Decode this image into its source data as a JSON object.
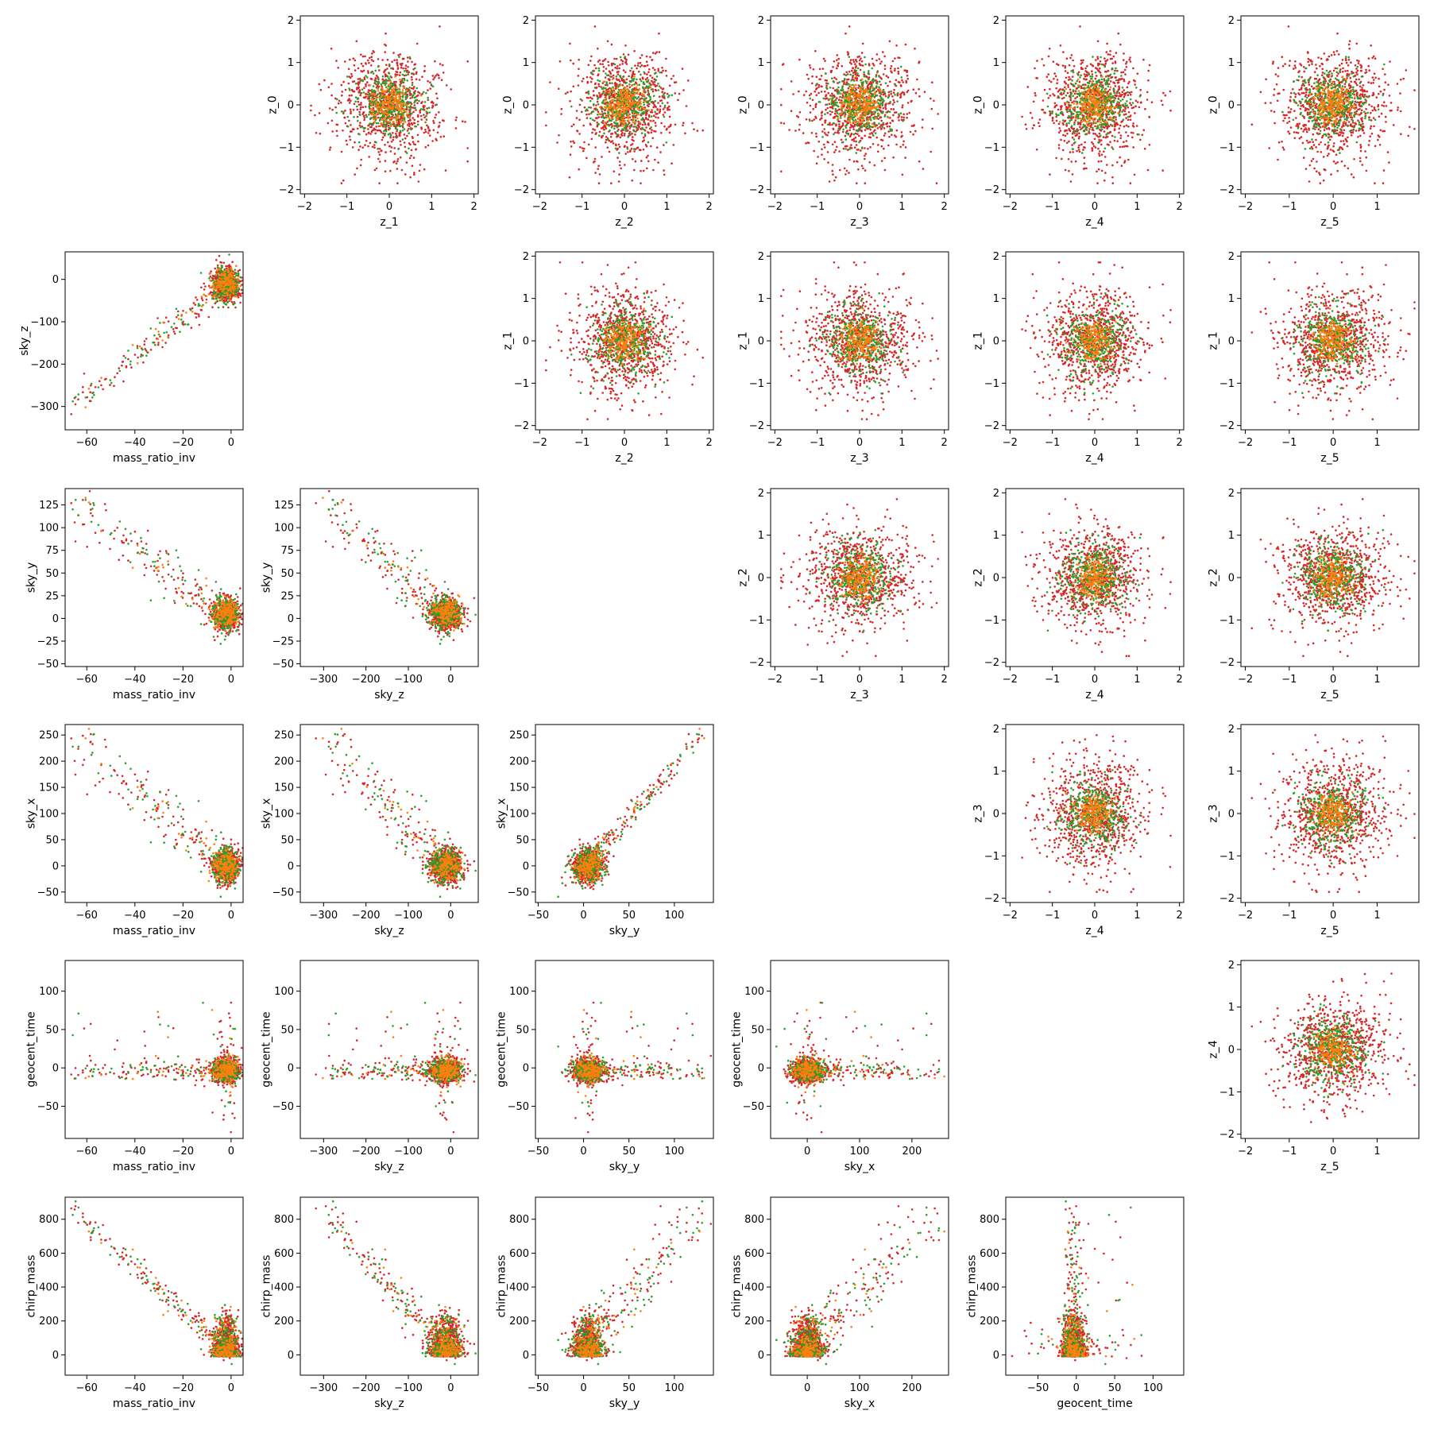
{
  "chart_data": {
    "type": "scatter",
    "layout": "corner-grid",
    "grid": false,
    "legend": "none",
    "colors": {
      "outer": "#d62728",
      "middle": "#2ca02c",
      "inner": "#ff7f0e"
    },
    "rows": [
      "z_0",
      "sky_z",
      "sky_y",
      "sky_x",
      "geocent_time",
      "chirp_mass"
    ],
    "cols": [
      "mass_ratio_inv",
      "z_1",
      "z_2",
      "z_3",
      "z_4",
      "z_5"
    ],
    "variables": {
      "z_0": {
        "range": [
          -2.1,
          2.1
        ],
        "ticks": [
          -2,
          -1,
          0,
          1,
          2
        ]
      },
      "z_1": {
        "range": [
          -2.1,
          2.1
        ],
        "ticks": [
          -2,
          -1,
          0,
          1,
          2
        ]
      },
      "z_2": {
        "range": [
          -2.1,
          2.1
        ],
        "ticks": [
          -2,
          -1,
          0,
          1,
          2
        ]
      },
      "z_3": {
        "range": [
          -2.1,
          2.1
        ],
        "ticks": [
          -2,
          -1,
          0,
          1,
          2
        ]
      },
      "z_4": {
        "range": [
          -2.1,
          2.1
        ],
        "ticks": [
          -2,
          -1,
          0,
          1,
          2
        ]
      },
      "z_5": {
        "range": [
          -2.1,
          1.95
        ],
        "ticks": [
          -2,
          -1,
          0,
          1
        ]
      },
      "mass_ratio_inv": {
        "range": [
          -69,
          5
        ],
        "ticks": [
          -60,
          -40,
          -20,
          0
        ]
      },
      "sky_z": {
        "range": [
          -355,
          65
        ],
        "ticks": [
          -300,
          -200,
          -100,
          0
        ]
      },
      "sky_y": {
        "range": [
          -53,
          143
        ],
        "ticks": [
          -50,
          0,
          50,
          100
        ]
      },
      "sky_x": {
        "range": [
          -70,
          270
        ],
        "ticks": [
          0,
          100,
          200
        ]
      },
      "geocent_time": {
        "range": [
          -92,
          140
        ],
        "ticks": [
          -50,
          0,
          50,
          100
        ]
      },
      "chirp_mass": {
        "range": [
          -120,
          930
        ],
        "ticks": [
          0,
          200,
          400,
          600,
          800
        ]
      }
    },
    "tick_labels": {
      "z_0": [
        "−2",
        "−1",
        "0",
        "1",
        "2"
      ],
      "z_1": [
        "−2",
        "−1",
        "0",
        "1",
        "2"
      ],
      "z_2": [
        "−2",
        "−1",
        "0",
        "1",
        "2"
      ],
      "z_3": [
        "−2",
        "−1",
        "0",
        "1",
        "2"
      ],
      "z_4": [
        "−2",
        "−1",
        "0",
        "1",
        "2"
      ],
      "z_5": [
        "−2",
        "−1",
        "0",
        "1"
      ],
      "mass_ratio_inv": [
        "−60",
        "−40",
        "−20",
        "0"
      ],
      "sky_z": [
        "−300",
        "−200",
        "−100",
        "0"
      ],
      "sky_y": [
        "−50",
        "0",
        "50",
        "100"
      ],
      "sky_x": [
        "0",
        "100",
        "200"
      ],
      "geocent_time": [
        "−50",
        "0",
        "50",
        "100"
      ],
      "chirp_mass": [
        "0",
        "200",
        "400",
        "600",
        "800"
      ]
    },
    "panels": [
      {
        "row": 0,
        "col": 1,
        "x": "z_1",
        "y": "z_0",
        "ytick_labels": [
          "−2",
          "−1",
          "0",
          "1",
          "2"
        ]
      },
      {
        "row": 0,
        "col": 2,
        "x": "z_2",
        "y": "z_0"
      },
      {
        "row": 0,
        "col": 3,
        "x": "z_3",
        "y": "z_0"
      },
      {
        "row": 0,
        "col": 4,
        "x": "z_4",
        "y": "z_0"
      },
      {
        "row": 0,
        "col": 5,
        "x": "z_5",
        "y": "z_0"
      },
      {
        "row": 1,
        "col": 0,
        "x": "mass_ratio_inv",
        "y": "sky_z",
        "ytick_labels": [
          "−300",
          "−200",
          "−100",
          "0"
        ]
      },
      {
        "row": 1,
        "col": 2,
        "x": "z_2",
        "y": "z_1"
      },
      {
        "row": 1,
        "col": 3,
        "x": "z_3",
        "y": "z_1"
      },
      {
        "row": 1,
        "col": 4,
        "x": "z_4",
        "y": "z_1"
      },
      {
        "row": 1,
        "col": 5,
        "x": "z_5",
        "y": "z_1"
      },
      {
        "row": 2,
        "col": 0,
        "x": "mass_ratio_inv",
        "y": "sky_y",
        "yticks": [
          -50,
          -25,
          0,
          25,
          50,
          75,
          100,
          125
        ],
        "ytick_labels": [
          "−50",
          "−25",
          "0",
          "25",
          "50",
          "75",
          "100",
          "125"
        ]
      },
      {
        "row": 2,
        "col": 1,
        "x": "sky_z",
        "y": "sky_y",
        "yticks": [
          -50,
          -25,
          0,
          25,
          50,
          75,
          100,
          125
        ],
        "ytick_labels": [
          "−50",
          "−25",
          "0",
          "25",
          "50",
          "75",
          "100",
          "125"
        ]
      },
      {
        "row": 2,
        "col": 3,
        "x": "z_3",
        "y": "z_2"
      },
      {
        "row": 2,
        "col": 4,
        "x": "z_4",
        "y": "z_2"
      },
      {
        "row": 2,
        "col": 5,
        "x": "z_5",
        "y": "z_2"
      },
      {
        "row": 3,
        "col": 0,
        "x": "mass_ratio_inv",
        "y": "sky_x",
        "yticks": [
          -50,
          0,
          50,
          100,
          150,
          200,
          250
        ],
        "ytick_labels": [
          "−50",
          "0",
          "50",
          "100",
          "150",
          "200",
          "250"
        ]
      },
      {
        "row": 3,
        "col": 1,
        "x": "sky_z",
        "y": "sky_x",
        "yticks": [
          -50,
          0,
          50,
          100,
          150,
          200,
          250
        ],
        "ytick_labels": [
          "−50",
          "0",
          "50",
          "100",
          "150",
          "200",
          "250"
        ]
      },
      {
        "row": 3,
        "col": 2,
        "x": "sky_y",
        "y": "sky_x",
        "yticks": [
          -50,
          0,
          50,
          100,
          150,
          200,
          250
        ],
        "ytick_labels": [
          "−50",
          "0",
          "50",
          "100",
          "150",
          "200",
          "250"
        ]
      },
      {
        "row": 3,
        "col": 4,
        "x": "z_4",
        "y": "z_3"
      },
      {
        "row": 3,
        "col": 5,
        "x": "z_5",
        "y": "z_3"
      },
      {
        "row": 4,
        "col": 0,
        "x": "mass_ratio_inv",
        "y": "geocent_time"
      },
      {
        "row": 4,
        "col": 1,
        "x": "sky_z",
        "y": "geocent_time"
      },
      {
        "row": 4,
        "col": 2,
        "x": "sky_y",
        "y": "geocent_time"
      },
      {
        "row": 4,
        "col": 3,
        "x": "sky_x",
        "y": "geocent_time"
      },
      {
        "row": 4,
        "col": 5,
        "x": "z_5",
        "y": "z_4"
      },
      {
        "row": 5,
        "col": 0,
        "x": "mass_ratio_inv",
        "y": "chirp_mass"
      },
      {
        "row": 5,
        "col": 1,
        "x": "sky_z",
        "y": "chirp_mass"
      },
      {
        "row": 5,
        "col": 2,
        "x": "sky_y",
        "y": "chirp_mass"
      },
      {
        "row": 5,
        "col": 3,
        "x": "sky_x",
        "y": "chirp_mass"
      },
      {
        "row": 5,
        "col": 4,
        "x": "geocent_time",
        "y": "chirp_mass"
      }
    ]
  }
}
